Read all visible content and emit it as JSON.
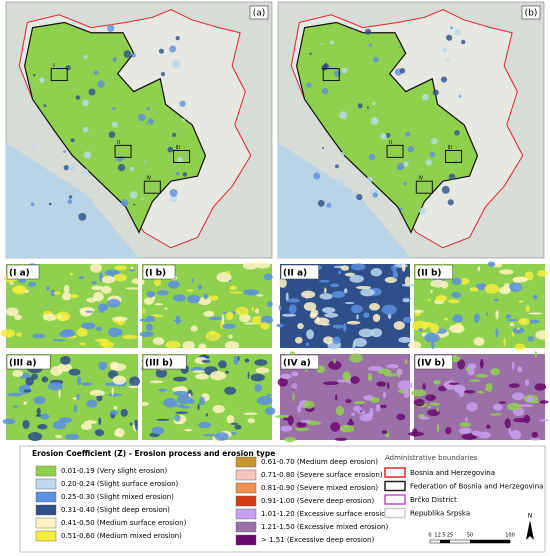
{
  "panels": {
    "a": "(a)",
    "b": "(b)"
  },
  "map_markers": [
    "I",
    "II",
    "III",
    "IV"
  ],
  "zooms": [
    "(I a)",
    "(I b)",
    "(II a)",
    "(II b)",
    "(III a)",
    "(III b)",
    "(IV a)",
    "(IV b)"
  ],
  "legend": {
    "title": "Erosion Coefficient (Z) - Erosion process and erosion type",
    "items": [
      {
        "label": "0.01-0.19 (Very slight erosion)",
        "color": "#8fd14f"
      },
      {
        "label": "0.20-0.24 (Slight surface erosion)",
        "color": "#bcd9ef"
      },
      {
        "label": "0.25-0.30 (Slight mixed erosion)",
        "color": "#5b8fe0"
      },
      {
        "label": "0.31-0.40 (Slight deep erosion)",
        "color": "#2f4f8a"
      },
      {
        "label": "0.41-0.50 (Medium surface erosion)",
        "color": "#fff3c4"
      },
      {
        "label": "0.51-0.60 (Medium mixed erosion)",
        "color": "#f5ec3a"
      },
      {
        "label": "0.61-0.70 (Medium deep erosion)",
        "color": "#c8962f"
      },
      {
        "label": "0.71-0.80 (Severe surface erosion)",
        "color": "#f6c3b9"
      },
      {
        "label": "0.81-0.90 (Severe mixed erosion)",
        "color": "#f1904f"
      },
      {
        "label": "0.91-1.00 (Severe deep erosion)",
        "color": "#d93a16"
      },
      {
        "label": "1.01-1.20 (Excessive surface erosion)",
        "color": "#c9a0ef"
      },
      {
        "label": "1.21-1.50 (Excessive mixed erosion)",
        "color": "#9b6fa8"
      },
      {
        "label": "> 1.51 (Excessive deep erosion)",
        "color": "#6a0a6e"
      }
    ]
  },
  "boundaries": {
    "title": "Administrative boundaries",
    "items": [
      {
        "label": "Bosnia and Herzegovina",
        "color": "#e0242a"
      },
      {
        "label": "Federation of Bosnia and Herzegovina",
        "color": "#222222"
      },
      {
        "label": "Brčko District",
        "color": "#c04fd0"
      },
      {
        "label": "Republika Srpska",
        "color": "#cccccc"
      }
    ]
  },
  "scale": [
    "0",
    "12.5",
    "25",
    "50",
    "100"
  ],
  "north": "N"
}
